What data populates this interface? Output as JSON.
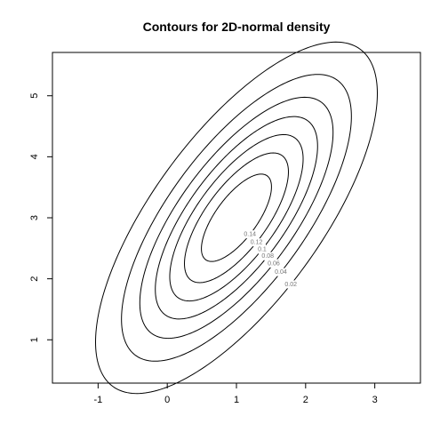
{
  "chart_data": {
    "type": "contour",
    "title": "Contours for 2D-normal density",
    "xlabel": "",
    "ylabel": "",
    "xlim": [
      -1.66,
      3.66
    ],
    "ylim": [
      0.29,
      5.71
    ],
    "x_ticks": [
      -1,
      0,
      1,
      2,
      3
    ],
    "y_ticks": [
      1,
      2,
      3,
      4,
      5
    ],
    "grid": false,
    "distribution": {
      "mean": [
        1,
        3
      ],
      "sd": [
        1,
        1.4142
      ],
      "correlation": 0.7071
    },
    "levels": [
      {
        "value": 0.02,
        "label": "0.02",
        "labelled": true
      },
      {
        "value": 0.04,
        "label": "0.04",
        "labelled": true
      },
      {
        "value": 0.06,
        "label": "0.06",
        "labelled": true
      },
      {
        "value": 0.08,
        "label": "0.08",
        "labelled": true
      },
      {
        "value": 0.1,
        "label": "0.1",
        "labelled": true
      },
      {
        "value": 0.12,
        "label": "0.12",
        "labelled": true
      },
      {
        "value": 0.14,
        "label": "0.14",
        "labelled": true
      },
      {
        "value": 0.16,
        "label": "0.16",
        "labelled": true
      },
      {
        "value": 0.18,
        "label": "0.18",
        "labelled": true
      }
    ],
    "colors": {
      "line": "#000000",
      "label": "#777777"
    }
  }
}
